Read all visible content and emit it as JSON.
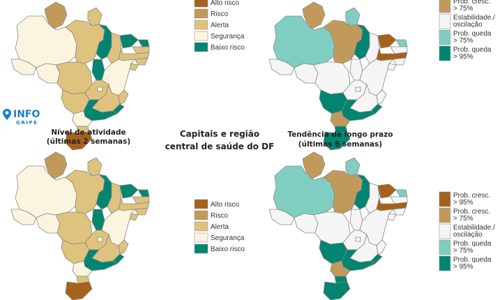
{
  "colors": {
    "alto_risco": "#a6611a",
    "risco": "#c19a5b",
    "alerta": "#dfc27d",
    "seguranca": "#fbf5e0",
    "baixo_risco": "#018571",
    "prob_cresc_95": "#a6611a",
    "prob_cresc_75": "#c19a5b",
    "estabilidade": "#f5f5f5",
    "prob_queda_75": "#80cdc1",
    "prob_queda_95": "#018571",
    "border": "#888888",
    "logo": "#1b7fc4"
  },
  "logo": {
    "name": "INFO",
    "sub": "GRIPE",
    "icon": "map-pin-icon"
  },
  "center_title": {
    "line1": "Capitais e região",
    "line2": "central de saúde do DF"
  },
  "activity_map": {
    "title_line1": "Nível de atividade",
    "title_line2": "(últimas 2 semanas)"
  },
  "trend_map": {
    "title_line1": "Tendência de longo prazo",
    "title_line2": "(últimas 6 semanas)"
  },
  "activity_legend": {
    "items": [
      {
        "label": "Alto risco",
        "color_key": "alto_risco"
      },
      {
        "label": "Risco",
        "color_key": "risco"
      },
      {
        "label": "Alerta",
        "color_key": "alerta"
      },
      {
        "label": "Segurança",
        "color_key": "seguranca"
      },
      {
        "label": "Baixo risco",
        "color_key": "baixo_risco"
      }
    ]
  },
  "trend_legend": {
    "items": [
      {
        "lines": [
          "Prob. cresc.",
          "> 95%"
        ],
        "color_key": "prob_cresc_95"
      },
      {
        "lines": [
          "Prob. cresc.",
          "> 75%"
        ],
        "color_key": "prob_cresc_75"
      },
      {
        "lines": [
          "Estabilidade./",
          "oscilação"
        ],
        "color_key": "estabilidade"
      },
      {
        "lines": [
          "Prob. queda",
          "> 75%"
        ],
        "color_key": "prob_queda_75"
      },
      {
        "lines": [
          "Prob. queda",
          "> 95%"
        ],
        "color_key": "prob_queda_95"
      }
    ]
  },
  "regions": {
    "AC": {
      "activity": "seguranca",
      "trend": "estabilidade"
    },
    "AM": {
      "activity": "seguranca",
      "trend": "prob_queda_75"
    },
    "RR": {
      "activity": "risco",
      "trend": "prob_cresc_75"
    },
    "RO": {
      "activity": "seguranca",
      "trend": "estabilidade"
    },
    "PA": {
      "activity": "alerta",
      "trend": "prob_cresc_75"
    },
    "AP": {
      "activity": "alerta",
      "trend": "prob_queda_75"
    },
    "MT": {
      "activity": "alerta",
      "trend": "estabilidade"
    },
    "TO": {
      "activity": "baixo_risco",
      "trend": "baixo_risco_na"
    },
    "MA": {
      "activity": "baixo_risco",
      "trend": "prob_queda_95"
    },
    "PI": {
      "activity": "alerta",
      "trend": "estabilidade"
    },
    "CE": {
      "activity": "baixo_risco",
      "trend": "prob_cresc_95"
    },
    "RN": {
      "activity": "baixo_risco",
      "trend": "prob_queda_75"
    },
    "PB": {
      "activity": "alerta",
      "trend": "estabilidade"
    },
    "PE": {
      "activity": "alerta",
      "trend": "prob_cresc_95"
    },
    "AL": {
      "activity": "alerta",
      "trend": "estabilidade"
    },
    "SE": {
      "activity": "alerta",
      "trend": "estabilidade"
    },
    "BA": {
      "activity": "seguranca",
      "trend": "estabilidade"
    },
    "GO": {
      "activity": "alerta",
      "trend": "estabilidade"
    },
    "DF": {
      "activity": "seguranca",
      "trend": "estabilidade"
    },
    "MS": {
      "activity": "alerta",
      "trend": "prob_queda_95"
    },
    "MG": {
      "activity": "alerta",
      "trend": "estabilidade"
    },
    "ES": {
      "activity": "alerta",
      "trend": "estabilidade"
    },
    "RJ": {
      "activity": "baixo_risco",
      "trend": "prob_queda_95"
    },
    "SP": {
      "activity": "baixo_risco",
      "trend": "prob_queda_95"
    },
    "PR": {
      "activity": "seguranca",
      "trend": "prob_cresc_75"
    },
    "SC": {
      "activity": "alerta",
      "trend": "prob_queda_95"
    },
    "RS": {
      "activity": "alto_risco",
      "trend": "prob_queda_95"
    }
  }
}
